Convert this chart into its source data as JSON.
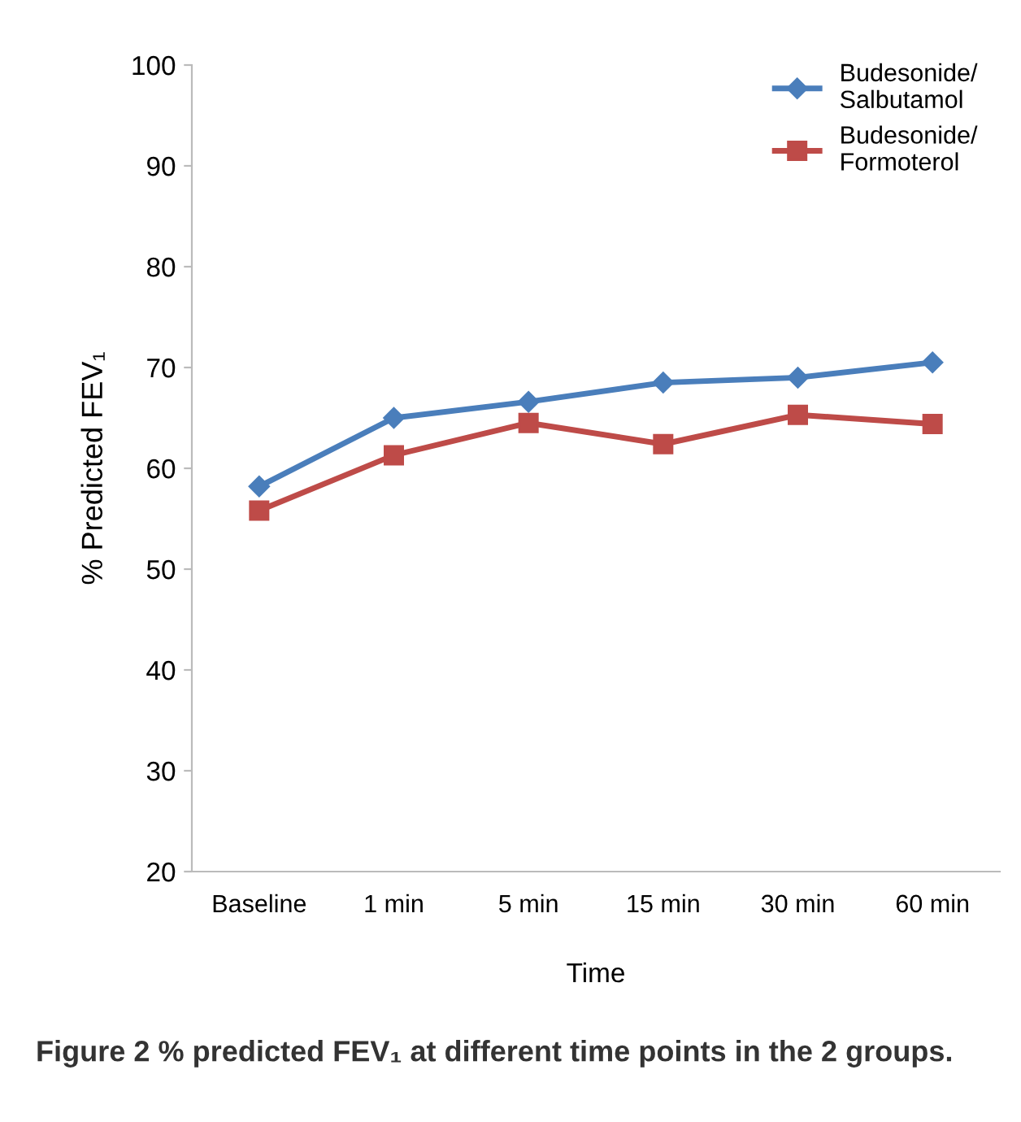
{
  "chart_data": {
    "type": "line",
    "xlabel": "Time",
    "ylabel": "% Predicted FEV₁",
    "categories": [
      "Baseline",
      "1 min",
      "5 min",
      "15 min",
      "30 min",
      "60 min"
    ],
    "series": [
      {
        "name": "Budesonide/\nSalbutamol",
        "color": "#4a7ebb",
        "marker": "diamond",
        "values": [
          58.2,
          65.0,
          66.6,
          68.5,
          69.0,
          70.5
        ]
      },
      {
        "name": "Budesonide/\nFormoterol",
        "color": "#be4b48",
        "marker": "square",
        "values": [
          55.8,
          61.3,
          64.5,
          62.4,
          65.3,
          64.4
        ]
      }
    ],
    "ylim": [
      20,
      100
    ],
    "yticks": [
      20,
      30,
      40,
      50,
      60,
      70,
      80,
      90,
      100
    ],
    "grid": false,
    "legend": "top right",
    "line_style": "solid",
    "annotations": [
      "Figure 2 % predicted FEV₁ at different time points in the 2 groups."
    ]
  }
}
